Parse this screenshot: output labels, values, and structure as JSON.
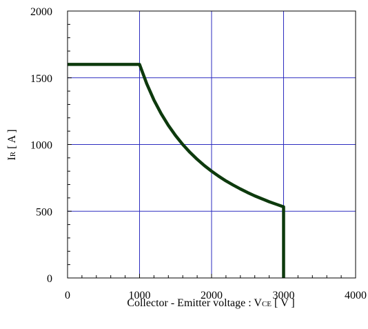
{
  "chart_data": {
    "type": "line",
    "title": "",
    "xlabel": "Collector - Emitter voltage : VCE [ V ]",
    "ylabel": "IR [ A ]",
    "xlabel_parts": {
      "main": "Collector - Emitter voltage  :  V",
      "sub": "CE",
      "unit": "  [ V ]"
    },
    "ylabel_parts": {
      "main": "I",
      "sub": "R",
      "unit": "  [ A ]"
    },
    "xlim": [
      0,
      4000
    ],
    "ylim": [
      0,
      2000
    ],
    "x_ticks": [
      0,
      1000,
      2000,
      3000,
      4000
    ],
    "y_ticks": [
      0,
      500,
      1000,
      1500,
      2000
    ],
    "x_minor_step": 200,
    "y_minor_step": 100,
    "grid": true,
    "colors": {
      "grid": "#2b2bbf",
      "line": "#0d3a0d",
      "frame": "#000000"
    },
    "series": [
      {
        "x": [
          0,
          1000,
          1100,
          1200,
          1300,
          1400,
          1500,
          1600,
          1700,
          1800,
          1900,
          2000,
          2100,
          2200,
          2300,
          2400,
          2500,
          2600,
          2700,
          2800,
          2900,
          3000,
          3000
        ],
        "y": [
          1600,
          1600,
          1455,
          1333,
          1231,
          1143,
          1067,
          1000,
          941,
          889,
          842,
          800,
          762,
          727,
          696,
          667,
          640,
          615,
          593,
          571,
          552,
          533,
          0
        ]
      }
    ]
  }
}
